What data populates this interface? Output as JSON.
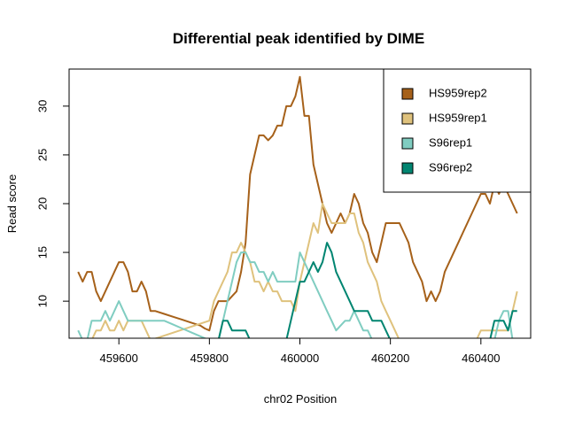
{
  "chart_data": {
    "type": "line",
    "title": "Differential peak identified by DIME",
    "xlabel": "chr02 Position",
    "ylabel": "Read score",
    "xlim": [
      459490,
      460510
    ],
    "ylim": [
      6.2,
      33.8
    ],
    "xticks": [
      459600,
      459800,
      460000,
      460200,
      460400
    ],
    "yticks": [
      10,
      15,
      20,
      25,
      30
    ],
    "grid": false,
    "legend_position": "top-right",
    "series": [
      {
        "name": "HS959rep2",
        "color": "#a6611a",
        "x": [
          459510,
          459520,
          459530,
          459540,
          459550,
          459560,
          459570,
          459580,
          459590,
          459600,
          459610,
          459620,
          459630,
          459640,
          459650,
          459660,
          459670,
          459680,
          459700,
          459720,
          459740,
          459760,
          459780,
          459790,
          459800,
          459810,
          459820,
          459830,
          459840,
          459850,
          459860,
          459870,
          459880,
          459890,
          459900,
          459910,
          459920,
          459930,
          459940,
          459950,
          459960,
          459970,
          459980,
          459990,
          460000,
          460010,
          460020,
          460030,
          460040,
          460050,
          460060,
          460070,
          460080,
          460090,
          460100,
          460110,
          460120,
          460130,
          460140,
          460150,
          460160,
          460170,
          460180,
          460190,
          460200,
          460210,
          460220,
          460230,
          460240,
          460250,
          460260,
          460270,
          460280,
          460290,
          460300,
          460310,
          460320,
          460330,
          460340,
          460350,
          460360,
          460370,
          460380,
          460390,
          460400,
          460410,
          460420,
          460430,
          460440,
          460450,
          460460,
          460470,
          460480
        ],
        "values": [
          13,
          12,
          13,
          13,
          11,
          10,
          11,
          12,
          13,
          14,
          14,
          13,
          11,
          11,
          12,
          11,
          9,
          9,
          8.7,
          8.4,
          8.1,
          7.8,
          7.5,
          7.2,
          7,
          9,
          10,
          10,
          10,
          10.5,
          11,
          13,
          16,
          23,
          25,
          27,
          27,
          26.5,
          27,
          28,
          28,
          30,
          30,
          31,
          33,
          29,
          29,
          24,
          22,
          20,
          18,
          17,
          18,
          19,
          18,
          19,
          21,
          20,
          18,
          17,
          15,
          14,
          16,
          18,
          18,
          18,
          18,
          17,
          16,
          14,
          13,
          12,
          10,
          11,
          10,
          11,
          13,
          14,
          15,
          16,
          17,
          18,
          19,
          20,
          21,
          21,
          20,
          22,
          21,
          22,
          21,
          20,
          19
        ]
      },
      {
        "name": "HS959rep1",
        "color": "#dfc27d",
        "x": [
          459510,
          459520,
          459530,
          459540,
          459550,
          459560,
          459570,
          459580,
          459590,
          459600,
          459610,
          459620,
          459630,
          459640,
          459650,
          459660,
          459670,
          459800,
          459810,
          459820,
          459830,
          459840,
          459850,
          459860,
          459870,
          459880,
          459890,
          459900,
          459910,
          459920,
          459930,
          459940,
          459950,
          459960,
          459970,
          459980,
          459990,
          460000,
          460010,
          460020,
          460030,
          460040,
          460050,
          460060,
          460070,
          460080,
          460090,
          460100,
          460110,
          460120,
          460130,
          460140,
          460150,
          460160,
          460170,
          460180,
          460190,
          460200,
          460210,
          460220,
          460380,
          460390,
          460400,
          460410,
          460420,
          460430,
          460440,
          460450,
          460460,
          460470,
          460480
        ],
        "values": [
          6,
          6,
          6,
          6,
          7,
          7,
          8,
          7,
          7,
          8,
          7,
          8,
          8,
          8,
          8,
          7,
          6,
          8,
          10,
          11,
          12,
          13,
          15,
          15,
          16,
          15,
          14,
          12,
          12,
          11,
          12,
          11,
          11,
          10,
          10,
          10,
          9,
          12,
          14,
          16,
          18,
          17,
          20,
          19,
          18,
          18,
          18,
          18,
          19,
          19,
          17,
          16,
          14,
          13,
          12,
          10,
          9,
          8,
          7,
          6,
          6,
          6,
          7,
          7,
          7,
          7,
          7,
          7,
          7,
          9,
          11
        ]
      },
      {
        "name": "S96rep1",
        "color": "#80cdc1",
        "x": [
          459510,
          459520,
          459530,
          459540,
          459550,
          459560,
          459570,
          459580,
          459590,
          459600,
          459610,
          459620,
          459630,
          459640,
          459650,
          459660,
          459670,
          459680,
          459690,
          459700,
          459720,
          459740,
          459760,
          459780,
          459800,
          459810,
          459820,
          459830,
          459840,
          459850,
          459860,
          459870,
          459880,
          459890,
          459900,
          459910,
          459920,
          459930,
          459940,
          459950,
          459960,
          459970,
          459980,
          459990,
          460000,
          460010,
          460020,
          460030,
          460040,
          460050,
          460060,
          460070,
          460080,
          460090,
          460100,
          460110,
          460120,
          460130,
          460140,
          460150,
          460160,
          460170,
          460180,
          460190,
          460200,
          460210,
          460220,
          460230,
          460240,
          460250,
          460260,
          460270,
          460280,
          460290,
          460300,
          460310,
          460400,
          460410,
          460420,
          460430,
          460440,
          460450,
          460460,
          460470,
          460480
        ],
        "values": [
          7,
          6,
          6,
          8,
          8,
          8,
          9,
          8,
          9,
          10,
          9,
          8,
          8,
          8,
          8,
          8,
          8,
          8,
          8,
          8,
          7.6,
          7.2,
          6.8,
          6.4,
          6,
          6,
          6,
          8,
          10,
          12,
          14,
          15,
          15,
          14,
          14,
          13,
          13,
          12,
          13,
          12,
          12,
          12,
          12,
          12,
          15,
          14,
          13,
          12,
          11,
          10,
          9,
          8,
          7,
          7.5,
          8,
          8,
          9,
          8,
          7,
          7,
          6,
          6,
          6,
          6,
          6,
          6,
          6,
          6,
          6,
          6,
          6,
          6,
          6,
          6,
          6,
          6,
          6,
          6,
          6,
          6,
          8,
          9,
          9,
          6,
          6
        ]
      },
      {
        "name": "S96rep2",
        "color": "#018571",
        "x": [
          459820,
          459830,
          459840,
          459850,
          459860,
          459870,
          459880,
          459890,
          459960,
          459970,
          459980,
          459990,
          460000,
          460010,
          460020,
          460030,
          460040,
          460050,
          460060,
          460070,
          460080,
          460090,
          460100,
          460110,
          460120,
          460130,
          460140,
          460150,
          460160,
          460170,
          460180,
          460190,
          460200,
          460210,
          460220,
          460230,
          460240,
          460420,
          460430,
          460440,
          460450,
          460460,
          460470,
          460480
        ],
        "values": [
          6,
          8,
          8,
          7,
          7,
          7,
          7,
          6,
          6,
          6,
          8,
          10,
          12,
          12,
          13,
          14,
          13,
          14,
          16,
          15,
          13,
          12,
          11,
          10,
          9,
          9,
          9,
          9,
          8,
          8,
          8,
          7,
          6,
          6,
          6,
          6,
          6,
          6,
          8,
          8,
          8,
          7,
          9,
          9
        ]
      }
    ]
  }
}
